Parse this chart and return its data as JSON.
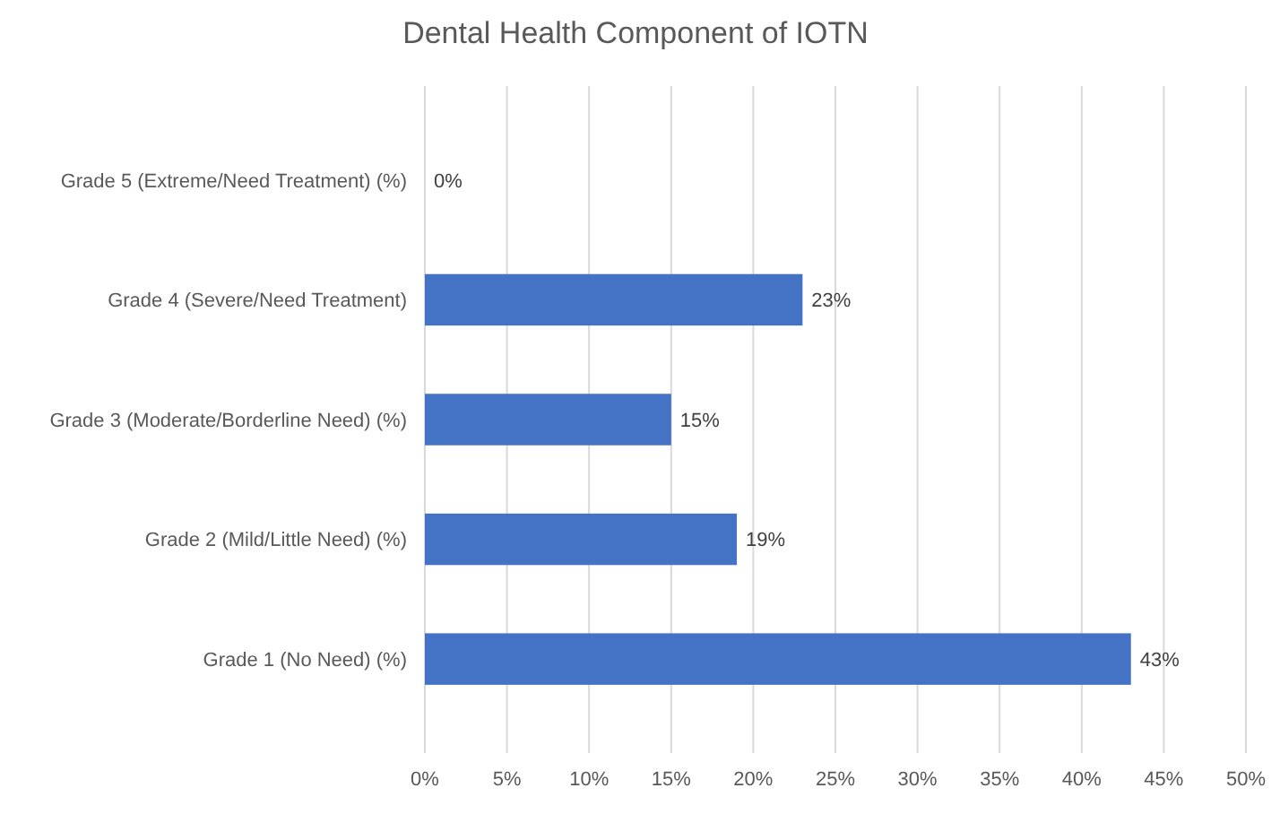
{
  "chart_data": {
    "type": "bar",
    "orientation": "horizontal",
    "title": "Dental Health Component of IOTN",
    "categories": [
      "Grade 5 (Extreme/Need Treatment) (%)",
      "Grade 4 (Severe/Need Treatment)",
      "Grade 3 (Moderate/Borderline Need) (%)",
      "Grade 2 (Mild/Little Need) (%)",
      "Grade 1 (No Need) (%)"
    ],
    "values": [
      0,
      23,
      15,
      19,
      43
    ],
    "value_labels": [
      "0%",
      "23%",
      "15%",
      "19%",
      "43%"
    ],
    "color": "#4472c4",
    "xlim": [
      0,
      50
    ],
    "xticks": [
      {
        "value": 0,
        "label": "0%"
      },
      {
        "value": 5,
        "label": "5%"
      },
      {
        "value": 10,
        "label": "10%"
      },
      {
        "value": 15,
        "label": "15%"
      },
      {
        "value": 20,
        "label": "20%"
      },
      {
        "value": 25,
        "label": "25%"
      },
      {
        "value": 30,
        "label": "30%"
      },
      {
        "value": 35,
        "label": "35%"
      },
      {
        "value": 40,
        "label": "40%"
      },
      {
        "value": 45,
        "label": "45%"
      },
      {
        "value": 50,
        "label": "50%"
      }
    ],
    "grid": "x"
  }
}
